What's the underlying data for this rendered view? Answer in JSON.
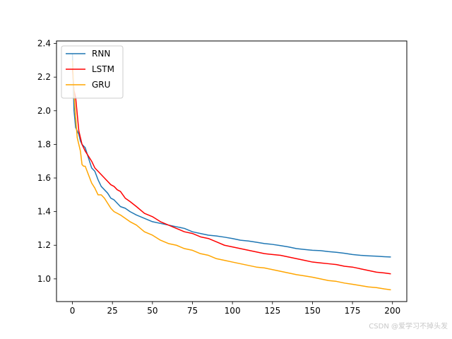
{
  "chart_data": {
    "type": "line",
    "title": "",
    "xlabel": "",
    "ylabel": "",
    "xlim": [
      -9.95,
      208.95
    ],
    "ylim": [
      0.865,
      2.415
    ],
    "xticks": [
      0,
      25,
      50,
      75,
      100,
      125,
      150,
      175,
      200
    ],
    "yticks": [
      1.0,
      1.2,
      1.4,
      1.6,
      1.8,
      2.0,
      2.2,
      2.4
    ],
    "ytick_labels": [
      "1.0",
      "1.2",
      "1.4",
      "1.6",
      "1.8",
      "2.0",
      "2.2",
      "2.4"
    ],
    "grid": false,
    "legend_position": "top-left",
    "series": [
      {
        "name": "RNN",
        "color": "#1f77b4",
        "points": [
          [
            0,
            2.34
          ],
          [
            1,
            2.0
          ],
          [
            2,
            1.9
          ],
          [
            3,
            1.88
          ],
          [
            4,
            1.86
          ],
          [
            5,
            1.82
          ],
          [
            6,
            1.8
          ],
          [
            8,
            1.78
          ],
          [
            10,
            1.72
          ],
          [
            12,
            1.66
          ],
          [
            14,
            1.64
          ],
          [
            16,
            1.59
          ],
          [
            18,
            1.55
          ],
          [
            20,
            1.53
          ],
          [
            22,
            1.51
          ],
          [
            24,
            1.48
          ],
          [
            26,
            1.47
          ],
          [
            28,
            1.45
          ],
          [
            30,
            1.43
          ],
          [
            33,
            1.42
          ],
          [
            36,
            1.4
          ],
          [
            40,
            1.38
          ],
          [
            45,
            1.36
          ],
          [
            50,
            1.34
          ],
          [
            55,
            1.33
          ],
          [
            60,
            1.32
          ],
          [
            65,
            1.31
          ],
          [
            70,
            1.3
          ],
          [
            75,
            1.28
          ],
          [
            80,
            1.27
          ],
          [
            85,
            1.26
          ],
          [
            90,
            1.255
          ],
          [
            95,
            1.248
          ],
          [
            100,
            1.24
          ],
          [
            105,
            1.23
          ],
          [
            110,
            1.225
          ],
          [
            115,
            1.218
          ],
          [
            120,
            1.21
          ],
          [
            125,
            1.205
          ],
          [
            130,
            1.198
          ],
          [
            135,
            1.19
          ],
          [
            140,
            1.18
          ],
          [
            145,
            1.175
          ],
          [
            150,
            1.17
          ],
          [
            155,
            1.168
          ],
          [
            160,
            1.162
          ],
          [
            165,
            1.158
          ],
          [
            170,
            1.152
          ],
          [
            175,
            1.145
          ],
          [
            180,
            1.14
          ],
          [
            185,
            1.137
          ],
          [
            190,
            1.135
          ],
          [
            195,
            1.132
          ],
          [
            199,
            1.13
          ]
        ]
      },
      {
        "name": "LSTM",
        "color": "#ff0000",
        "points": [
          [
            0,
            2.25
          ],
          [
            1,
            2.12
          ],
          [
            2,
            2.08
          ],
          [
            3,
            1.98
          ],
          [
            4,
            1.88
          ],
          [
            5,
            1.84
          ],
          [
            6,
            1.8
          ],
          [
            8,
            1.76
          ],
          [
            10,
            1.73
          ],
          [
            12,
            1.7
          ],
          [
            14,
            1.66
          ],
          [
            16,
            1.64
          ],
          [
            18,
            1.62
          ],
          [
            20,
            1.6
          ],
          [
            22,
            1.58
          ],
          [
            24,
            1.56
          ],
          [
            26,
            1.55
          ],
          [
            28,
            1.53
          ],
          [
            30,
            1.52
          ],
          [
            33,
            1.48
          ],
          [
            36,
            1.46
          ],
          [
            40,
            1.43
          ],
          [
            45,
            1.39
          ],
          [
            50,
            1.37
          ],
          [
            55,
            1.34
          ],
          [
            60,
            1.32
          ],
          [
            65,
            1.3
          ],
          [
            70,
            1.28
          ],
          [
            75,
            1.27
          ],
          [
            80,
            1.25
          ],
          [
            85,
            1.24
          ],
          [
            90,
            1.22
          ],
          [
            95,
            1.2
          ],
          [
            100,
            1.19
          ],
          [
            105,
            1.18
          ],
          [
            110,
            1.17
          ],
          [
            115,
            1.16
          ],
          [
            120,
            1.15
          ],
          [
            125,
            1.145
          ],
          [
            130,
            1.14
          ],
          [
            135,
            1.13
          ],
          [
            140,
            1.12
          ],
          [
            145,
            1.11
          ],
          [
            150,
            1.1
          ],
          [
            155,
            1.095
          ],
          [
            160,
            1.09
          ],
          [
            165,
            1.085
          ],
          [
            170,
            1.075
          ],
          [
            175,
            1.07
          ],
          [
            180,
            1.06
          ],
          [
            185,
            1.05
          ],
          [
            190,
            1.04
          ],
          [
            195,
            1.035
          ],
          [
            199,
            1.03
          ]
        ]
      },
      {
        "name": "GRU",
        "color": "#ffa500",
        "points": [
          [
            0,
            2.3
          ],
          [
            1,
            2.1
          ],
          [
            2,
            1.96
          ],
          [
            3,
            1.84
          ],
          [
            4,
            1.8
          ],
          [
            5,
            1.76
          ],
          [
            6,
            1.68
          ],
          [
            7,
            1.67
          ],
          [
            8,
            1.67
          ],
          [
            10,
            1.62
          ],
          [
            12,
            1.57
          ],
          [
            14,
            1.54
          ],
          [
            16,
            1.5
          ],
          [
            18,
            1.5
          ],
          [
            20,
            1.48
          ],
          [
            22,
            1.45
          ],
          [
            24,
            1.42
          ],
          [
            26,
            1.4
          ],
          [
            28,
            1.39
          ],
          [
            30,
            1.38
          ],
          [
            33,
            1.36
          ],
          [
            36,
            1.34
          ],
          [
            40,
            1.32
          ],
          [
            45,
            1.28
          ],
          [
            50,
            1.26
          ],
          [
            55,
            1.23
          ],
          [
            60,
            1.21
          ],
          [
            65,
            1.2
          ],
          [
            70,
            1.18
          ],
          [
            75,
            1.17
          ],
          [
            80,
            1.15
          ],
          [
            85,
            1.14
          ],
          [
            90,
            1.12
          ],
          [
            95,
            1.11
          ],
          [
            100,
            1.1
          ],
          [
            105,
            1.09
          ],
          [
            110,
            1.08
          ],
          [
            115,
            1.07
          ],
          [
            120,
            1.065
          ],
          [
            125,
            1.055
          ],
          [
            130,
            1.045
          ],
          [
            135,
            1.035
          ],
          [
            140,
            1.025
          ],
          [
            145,
            1.018
          ],
          [
            150,
            1.01
          ],
          [
            155,
            1.0
          ],
          [
            160,
            0.99
          ],
          [
            165,
            0.985
          ],
          [
            170,
            0.975
          ],
          [
            175,
            0.968
          ],
          [
            180,
            0.96
          ],
          [
            185,
            0.952
          ],
          [
            190,
            0.948
          ],
          [
            195,
            0.94
          ],
          [
            199,
            0.935
          ]
        ]
      }
    ]
  },
  "watermark": "CSDN @爱学习不掉头发"
}
